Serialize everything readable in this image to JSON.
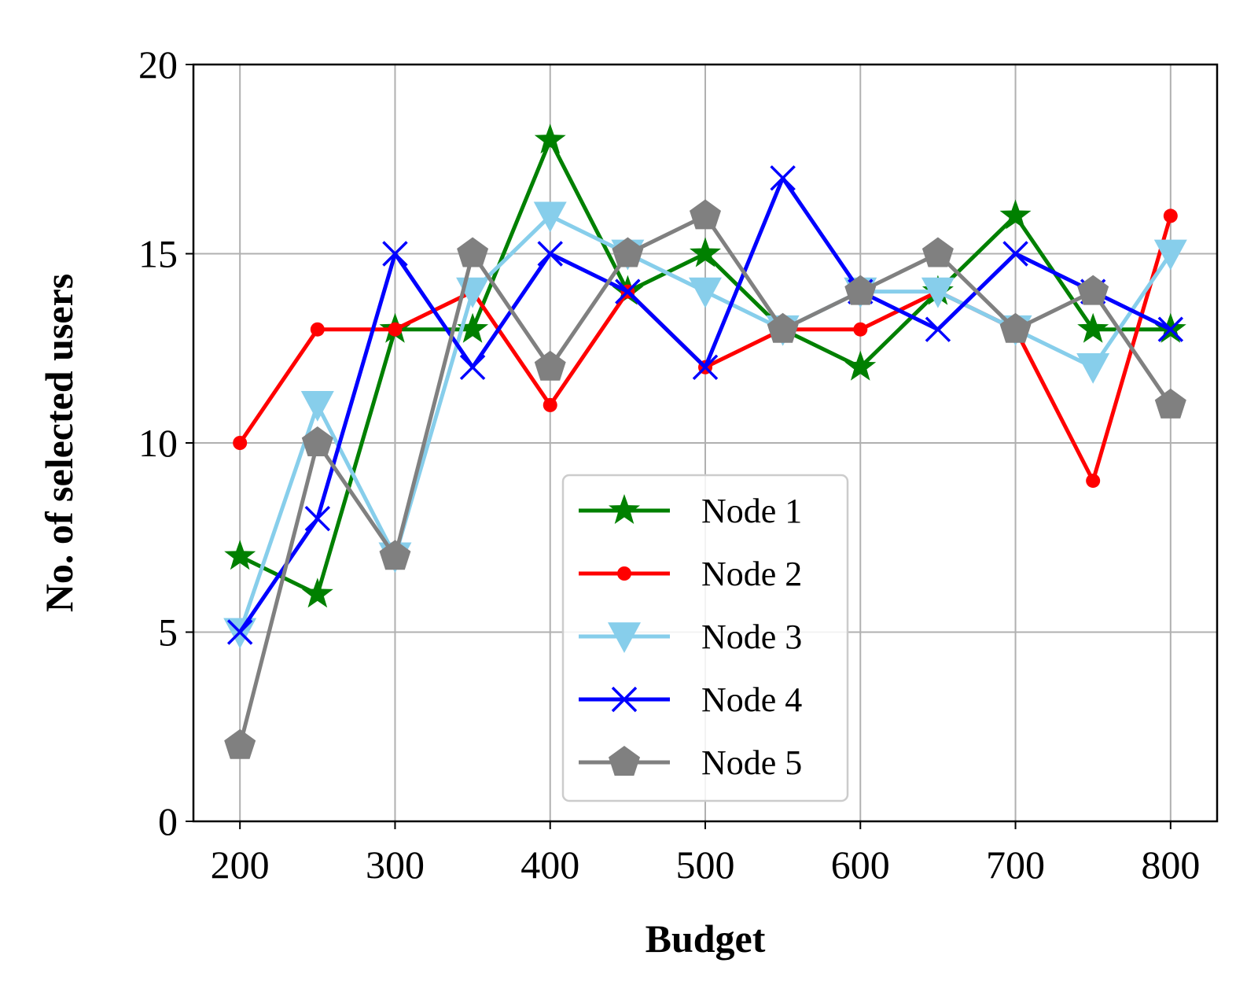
{
  "chart_data": {
    "type": "line",
    "title": "",
    "xlabel": "Budget",
    "ylabel": "No. of selected users",
    "x": [
      200,
      250,
      300,
      350,
      400,
      450,
      500,
      550,
      600,
      650,
      700,
      750,
      800
    ],
    "xlim": [
      170,
      830
    ],
    "ylim": [
      0,
      20
    ],
    "xticks": [
      "200",
      "300",
      "400",
      "500",
      "600",
      "700",
      "800"
    ],
    "yticks": [
      "0",
      "5",
      "10",
      "15",
      "20"
    ],
    "grid": true,
    "legend_position": "lower-center",
    "series": [
      {
        "name": "Node 1",
        "color": "#008000",
        "marker": "star",
        "values": [
          7,
          6,
          13,
          13,
          18,
          14,
          15,
          13,
          12,
          14,
          16,
          13,
          13
        ]
      },
      {
        "name": "Node 2",
        "color": "#ff0000",
        "marker": "circle",
        "values": [
          10,
          13,
          13,
          14,
          11,
          14,
          12,
          13,
          13,
          14,
          13,
          9,
          16
        ]
      },
      {
        "name": "Node 3",
        "color": "#87ceeb",
        "marker": "triangle-down",
        "values": [
          5,
          11,
          7,
          14,
          16,
          15,
          14,
          13,
          14,
          14,
          13,
          12,
          15
        ]
      },
      {
        "name": "Node 4",
        "color": "#0000ff",
        "marker": "x",
        "values": [
          5,
          8,
          15,
          12,
          15,
          14,
          12,
          17,
          14,
          13,
          15,
          14,
          13
        ]
      },
      {
        "name": "Node 5",
        "color": "#808080",
        "marker": "pentagon",
        "values": [
          2,
          10,
          7,
          15,
          12,
          15,
          16,
          13,
          14,
          15,
          13,
          14,
          11
        ]
      }
    ]
  }
}
